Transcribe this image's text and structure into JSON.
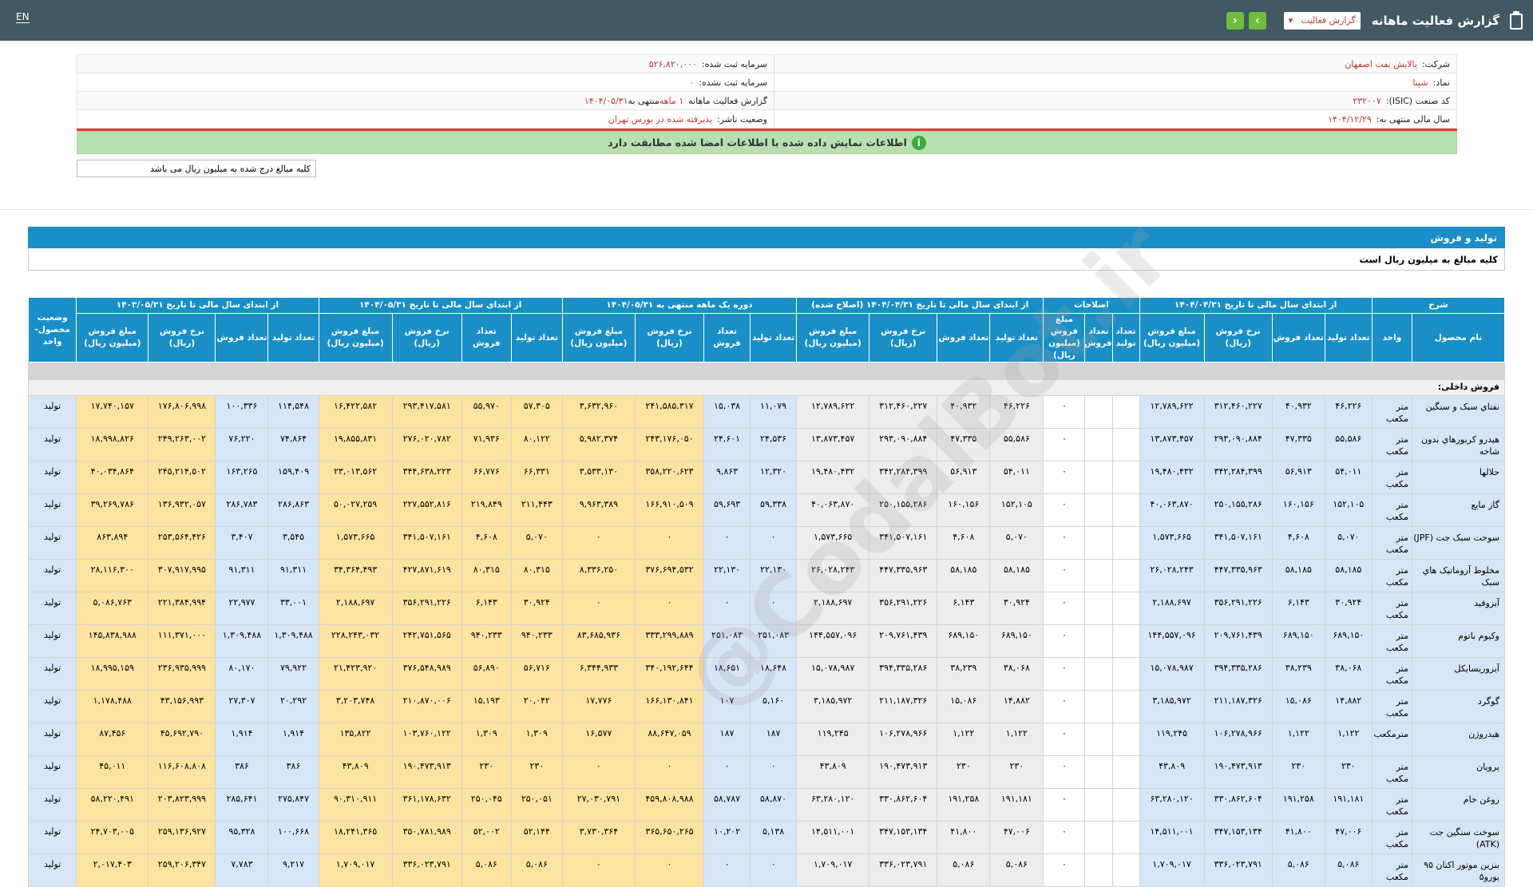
{
  "topbar": {
    "title": "گزارش فعالیت ماهانه",
    "select_value": "گزارش فعالیت",
    "next_label": "›",
    "prev_label": "‹",
    "lang": "EN"
  },
  "info": {
    "company_label": "شرکت:",
    "company": "پالایش نفت اصفهان",
    "symbol_label": "نماد:",
    "symbol": "شپنا",
    "isic_label": "کد صنعت (ISIC):",
    "isic": "۲۳۲۰۰۷",
    "fiscal_label": "سال مالی منتهی به:",
    "fiscal": "۱۴۰۴/۱۲/۲۹",
    "capital_label": "سرمایه ثبت شده:",
    "capital": "۵۲۶,۸۲۰,۰۰۰",
    "unreg_capital_label": "سرمایه ثبت نشده:",
    "unreg_capital": "۰",
    "report_label": "گزارش فعالیت ماهانه",
    "report_value": "۱ ماهه",
    "report_end": "منتهی به",
    "report_date": "۱۴۰۴/۰۵/۳۱",
    "status_label": "وضعیت ناشر:",
    "status": "پذیرفته شده در بورس تهران"
  },
  "banner": "اطلاعات نمایش داده شده با اطلاعات امضا شده مطابقت دارد",
  "note": "کلیه مبالغ درج شده به میلیون ریال می باشد",
  "section": {
    "title": "تولید و فروش",
    "subtitle": "کلیه مبالغ به میلیون ریال است"
  },
  "table": {
    "groups": [
      "شرح",
      "از ابتدای سال مالی تا تاریخ ۱۴۰۴/۰۴/۳۱",
      "اصلاحات",
      "از ابتدای سال مالی تا تاریخ ۱۴۰۴/۰۴/۳۱ (اصلاح شده)",
      "دوره یک ماهه منتهی به ۱۴۰۴/۰۵/۳۱",
      "از ابتدای سال مالی تا تاریخ ۱۴۰۴/۰۵/۳۱",
      "از ابتدای سال مالی تا تاریخ ۱۴۰۳/۰۵/۳۱",
      "وضعیت محصول-واحد"
    ],
    "sub_headers": {
      "name": "نام محصول",
      "unit": "واحد",
      "prod": "تعداد تولید",
      "sales": "تعداد فروش",
      "rate": "نرخ فروش (ریال)",
      "amount": "مبلغ فروش (میلیون ریال)"
    },
    "group_label": "فروش داخلی:",
    "rows": [
      {
        "name": "نفتاي سبک و سنگين",
        "unit": "متر مکعب",
        "v": [
          "۴۶,۲۲۶",
          "۴۰,۹۳۲",
          "۳۱۲,۴۶۰,۲۲۷",
          "۱۲,۷۸۹,۶۲۲",
          "",
          "",
          "۰",
          "۴۶,۲۲۶",
          "۴۰,۹۳۲",
          "۳۱۲,۴۶۰,۲۲۷",
          "۱۲,۷۸۹,۶۲۲",
          "۱۱,۰۷۹",
          "۱۵,۰۳۸",
          "۲۴۱,۵۸۵,۳۱۷",
          "۳,۶۳۲,۹۶۰",
          "۵۷,۳۰۵",
          "۵۵,۹۷۰",
          "۲۹۳,۴۱۷,۵۸۱",
          "۱۶,۴۲۲,۵۸۲",
          "۱۱۴,۵۴۸",
          "۱۰۰,۳۳۶",
          "۱۷۶,۸۰۶,۹۹۸",
          "۱۷,۷۴۰,۱۵۷"
        ],
        "status": "تولید"
      },
      {
        "name": "هيدرو کربورهاي بدون شاخه",
        "unit": "متر مکعب",
        "v": [
          "۵۵,۵۸۶",
          "۴۷,۳۳۵",
          "۲۹۳,۰۹۰,۸۸۴",
          "۱۳,۸۷۳,۴۵۷",
          "",
          "",
          "۰",
          "۵۵,۵۸۶",
          "۴۷,۳۳۵",
          "۲۹۳,۰۹۰,۸۸۴",
          "۱۳,۸۷۳,۴۵۷",
          "۲۴,۵۳۶",
          "۲۴,۶۰۱",
          "۲۴۳,۱۷۶,۰۵۰",
          "۵,۹۸۲,۳۷۴",
          "۸۰,۱۲۲",
          "۷۱,۹۳۶",
          "۲۷۶,۰۲۰,۷۸۲",
          "۱۹,۸۵۵,۸۳۱",
          "۷۴,۸۶۴",
          "۷۶,۲۲۰",
          "۲۴۹,۲۶۳,۰۰۲",
          "۱۸,۹۹۸,۸۲۶"
        ],
        "status": "تولید"
      },
      {
        "name": "حلالها",
        "unit": "متر مکعب",
        "v": [
          "۵۴,۰۱۱",
          "۵۶,۹۱۳",
          "۳۴۲,۲۸۴,۳۹۹",
          "۱۹,۴۸۰,۴۳۲",
          "",
          "",
          "۰",
          "۵۴,۰۱۱",
          "۵۶,۹۱۳",
          "۳۴۲,۲۸۴,۳۹۹",
          "۱۹,۴۸۰,۴۳۲",
          "۱۲,۳۲۰",
          "۹,۸۶۳",
          "۳۵۸,۲۲۰,۶۲۳",
          "۳,۵۳۳,۱۳۰",
          "۶۶,۳۳۱",
          "۶۶,۷۷۶",
          "۳۴۴,۶۳۸,۲۲۳",
          "۲۳,۰۱۳,۵۶۲",
          "۱۵۹,۴۰۹",
          "۱۶۳,۲۶۵",
          "۲۴۵,۲۱۴,۵۰۲",
          "۴۰,۰۳۴,۸۶۴"
        ],
        "status": "تولید"
      },
      {
        "name": "گاز مايع",
        "unit": "متر مکعب",
        "v": [
          "۱۵۲,۱۰۵",
          "۱۶۰,۱۵۶",
          "۲۵۰,۱۵۵,۲۸۶",
          "۴۰,۰۶۳,۸۷۰",
          "",
          "",
          "۰",
          "۱۵۲,۱۰۵",
          "۱۶۰,۱۵۶",
          "۲۵۰,۱۵۵,۲۸۶",
          "۴۰,۰۶۳,۸۷۰",
          "۵۹,۳۳۸",
          "۵۹,۶۹۳",
          "۱۶۶,۹۱۰,۵۰۹",
          "۹,۹۶۳,۳۸۹",
          "۲۱۱,۴۴۳",
          "۲۱۹,۸۴۹",
          "۲۲۷,۵۵۲,۸۱۶",
          "۵۰,۰۲۷,۲۵۹",
          "۲۸۶,۸۶۳",
          "۲۸۶,۷۸۳",
          "۱۳۶,۹۳۲,۰۵۷",
          "۳۹,۲۶۹,۷۸۶"
        ],
        "status": "تولید"
      },
      {
        "name": "سوخت سبک جت (JPF)",
        "unit": "متر مکعب",
        "v": [
          "۵,۰۷۰",
          "۴,۶۰۸",
          "۳۴۱,۵۰۷,۱۶۱",
          "۱,۵۷۳,۶۶۵",
          "",
          "",
          "۰",
          "۵,۰۷۰",
          "۴,۶۰۸",
          "۳۴۱,۵۰۷,۱۶۱",
          "۱,۵۷۳,۶۶۵",
          "۰",
          "۰",
          "۰",
          "۰",
          "۵,۰۷۰",
          "۴,۶۰۸",
          "۳۴۱,۵۰۷,۱۶۱",
          "۱,۵۷۳,۶۶۵",
          "۳,۵۴۵",
          "۳,۴۰۷",
          "۲۵۳,۵۶۴,۴۲۶",
          "۸۶۳,۸۹۴"
        ],
        "status": "تولید"
      },
      {
        "name": "مخلوط آروماتيک هاي سبک",
        "unit": "متر مکعب",
        "v": [
          "۵۸,۱۸۵",
          "۵۸,۱۸۵",
          "۴۴۷,۳۳۵,۹۶۳",
          "۲۶,۰۲۸,۲۴۳",
          "",
          "",
          "۰",
          "۵۸,۱۸۵",
          "۵۸,۱۸۵",
          "۴۴۷,۳۳۵,۹۶۳",
          "۲۶,۰۲۸,۲۴۳",
          "۲۲,۱۳۰",
          "۲۲,۱۳۰",
          "۳۷۶,۶۹۴,۵۳۲",
          "۸,۳۳۶,۲۵۰",
          "۸۰,۳۱۵",
          "۸۰,۳۱۵",
          "۴۲۷,۸۷۱,۶۱۹",
          "۳۴,۳۶۴,۴۹۳",
          "۹۱,۳۱۱",
          "۹۱,۳۱۱",
          "۳۰۷,۹۱۷,۹۹۵",
          "۲۸,۱۱۶,۳۰۰"
        ],
        "status": "تولید"
      },
      {
        "name": "آيزوفيد",
        "unit": "متر مکعب",
        "v": [
          "۳۰,۹۲۴",
          "۶,۱۴۳",
          "۳۵۶,۲۹۱,۲۲۶",
          "۲,۱۸۸,۶۹۷",
          "",
          "",
          "۰",
          "۳۰,۹۲۴",
          "۶,۱۴۳",
          "۳۵۶,۲۹۱,۲۲۶",
          "۲,۱۸۸,۶۹۷",
          "۰",
          "۰",
          "۰",
          "۰",
          "۳۰,۹۲۴",
          "۶,۱۴۳",
          "۳۵۶,۲۹۱,۲۲۶",
          "۲,۱۸۸,۶۹۷",
          "۳۳,۰۰۱",
          "۲۲,۹۷۷",
          "۲۲۱,۳۸۴,۹۹۴",
          "۵,۰۸۶,۷۶۳"
        ],
        "status": "تولید"
      },
      {
        "name": "وکيوم باتوم",
        "unit": "متر مکعب",
        "v": [
          "۶۸۹,۱۵۰",
          "۶۸۹,۱۵۰",
          "۲۰۹,۷۶۱,۴۳۹",
          "۱۴۴,۵۵۷,۰۹۶",
          "",
          "",
          "۰",
          "۶۸۹,۱۵۰",
          "۶۸۹,۱۵۰",
          "۲۰۹,۷۶۱,۴۳۹",
          "۱۴۴,۵۵۷,۰۹۶",
          "۲۵۱,۰۸۳",
          "۲۵۱,۰۸۳",
          "۳۳۳,۲۹۹,۸۸۹",
          "۸۳,۶۸۵,۹۳۶",
          "۹۴۰,۲۳۳",
          "۹۴۰,۲۳۳",
          "۲۴۲,۷۵۱,۵۶۵",
          "۲۲۸,۲۴۳,۰۳۲",
          "۱,۳۰۹,۴۸۸",
          "۱,۳۰۹,۴۸۸",
          "۱۱۱,۳۷۱,۰۰۰",
          "۱۴۵,۸۳۸,۹۸۸"
        ],
        "status": "تولید"
      },
      {
        "name": "آيزوريسايکل",
        "unit": "متر مکعب",
        "v": [
          "۳۸,۰۶۸",
          "۳۸,۲۳۹",
          "۳۹۴,۳۳۵,۲۸۶",
          "۱۵,۰۷۸,۹۸۷",
          "",
          "",
          "۰",
          "۳۸,۰۶۸",
          "۳۸,۲۳۹",
          "۳۹۴,۳۳۵,۲۸۶",
          "۱۵,۰۷۸,۹۸۷",
          "۱۸,۶۴۸",
          "۱۸,۶۵۱",
          "۳۴۰,۱۹۲,۶۴۴",
          "۶,۳۴۴,۹۳۳",
          "۵۶,۷۱۶",
          "۵۶,۸۹۰",
          "۳۷۶,۵۴۸,۹۸۹",
          "۲۱,۴۲۳,۹۲۰",
          "۷۹,۹۲۲",
          "۸۰,۱۷۰",
          "۲۳۶,۹۳۵,۹۹۹",
          "۱۸,۹۹۵,۱۵۹"
        ],
        "status": "تولید"
      },
      {
        "name": "گوگرد",
        "unit": "متر مکعب",
        "v": [
          "۱۴,۸۸۲",
          "۱۵,۰۸۶",
          "۲۱۱,۱۸۷,۳۲۶",
          "۳,۱۸۵,۹۷۲",
          "",
          "",
          "۰",
          "۱۴,۸۸۲",
          "۱۵,۰۸۶",
          "۲۱۱,۱۸۷,۳۲۶",
          "۳,۱۸۵,۹۷۲",
          "۵,۱۶۰",
          "۱۰۷",
          "۱۶۶,۱۳۰,۸۴۱",
          "۱۷,۷۷۶",
          "۲۰,۰۴۲",
          "۱۵,۱۹۳",
          "۲۱۰,۸۷۰,۰۰۶",
          "۳,۲۰۳,۷۴۸",
          "۲۰,۲۹۲",
          "۲۷,۳۰۷",
          "۴۳,۱۵۶,۹۹۳",
          "۱,۱۷۸,۴۸۸"
        ],
        "status": "تولید"
      },
      {
        "name": "هيدروژن",
        "unit": "مترمکعب",
        "v": [
          "۱,۱۲۲",
          "۱,۱۲۲",
          "۱۰۶,۲۷۸,۹۶۶",
          "۱۱۹,۲۴۵",
          "",
          "",
          "۰",
          "۱,۱۲۲",
          "۱,۱۲۲",
          "۱۰۶,۲۷۸,۹۶۶",
          "۱۱۹,۲۴۵",
          "۱۸۷",
          "۱۸۷",
          "۸۸,۶۴۷,۰۵۹",
          "۱۶,۵۷۷",
          "۱,۳۰۹",
          "۱,۳۰۹",
          "۱۰۳,۷۶۰,۱۲۲",
          "۱۳۵,۸۲۲",
          "۱,۹۱۴",
          "۱,۹۱۴",
          "۴۵,۶۹۲,۷۹۰",
          "۸۷,۴۵۶"
        ],
        "status": "تولید"
      },
      {
        "name": "پروپان",
        "unit": "متر مکعب",
        "v": [
          "۲۳۰",
          "۲۳۰",
          "۱۹۰,۴۷۳,۹۱۳",
          "۴۳,۸۰۹",
          "",
          "",
          "۰",
          "۲۳۰",
          "۲۳۰",
          "۱۹۰,۴۷۳,۹۱۳",
          "۴۳,۸۰۹",
          "۰",
          "۰",
          "۰",
          "۰",
          "۲۳۰",
          "۲۳۰",
          "۱۹۰,۴۷۳,۹۱۳",
          "۴۳,۸۰۹",
          "۳۸۶",
          "۳۸۶",
          "۱۱۶,۶۰۸,۸۰۸",
          "۴۵,۰۱۱"
        ],
        "status": "تولید"
      },
      {
        "name": "روغن خام",
        "unit": "متر مکعب",
        "v": [
          "۱۹۱,۱۸۱",
          "۱۹۱,۲۵۸",
          "۳۳۰,۸۶۲,۶۰۴",
          "۶۳,۲۸۰,۱۲۰",
          "",
          "",
          "۰",
          "۱۹۱,۱۸۱",
          "۱۹۱,۲۵۸",
          "۳۳۰,۸۶۲,۶۰۴",
          "۶۳,۲۸۰,۱۲۰",
          "۵۸,۸۷۰",
          "۵۸,۷۸۷",
          "۴۵۹,۸۰۸,۹۸۸",
          "۲۷,۰۳۰,۷۹۱",
          "۲۵۰,۰۵۱",
          "۲۵۰,۰۴۵",
          "۳۶۱,۱۷۸,۶۳۲",
          "۹۰,۳۱۰,۹۱۱",
          "۲۷۵,۸۴۷",
          "۲۸۵,۶۴۱",
          "۲۰۳,۸۲۳,۹۹۹",
          "۵۸,۲۲۰,۴۹۱"
        ],
        "status": "تولید"
      },
      {
        "name": "سوخت سنگين جت (ATK)",
        "unit": "متر مکعب",
        "v": [
          "۴۷,۰۰۶",
          "۴۱,۸۰۰",
          "۳۴۷,۱۵۳,۱۳۴",
          "۱۴,۵۱۱,۰۰۱",
          "",
          "",
          "۰",
          "۴۷,۰۰۶",
          "۴۱,۸۰۰",
          "۳۴۷,۱۵۳,۱۳۴",
          "۱۴,۵۱۱,۰۰۱",
          "۵,۱۳۸",
          "۱۰,۲۰۲",
          "۳۶۵,۶۵۰,۲۶۵",
          "۳,۷۳۰,۳۶۴",
          "۵۲,۱۴۴",
          "۵۲,۰۰۲",
          "۳۵۰,۷۸۱,۹۸۹",
          "۱۸,۲۴۱,۳۶۵",
          "۱۰۰,۶۶۸",
          "۹۵,۳۲۸",
          "۲۵۹,۱۳۶,۹۲۷",
          "۲۴,۷۰۳,۰۰۵"
        ],
        "status": "تولید"
      },
      {
        "name": "بنزين موتور اکتان ۹۵ يورو۵",
        "unit": "متر مکعب",
        "v": [
          "۵,۰۸۶",
          "۵,۰۸۶",
          "۳۳۶,۰۲۳,۷۹۱",
          "۱,۷۰۹,۰۱۷",
          "",
          "",
          "۰",
          "۵,۰۸۶",
          "۵,۰۸۶",
          "۳۳۶,۰۲۳,۷۹۱",
          "۱,۷۰۹,۰۱۷",
          "۰",
          "۰",
          "۰",
          "۰",
          "۵,۰۸۶",
          "۵,۰۸۶",
          "۳۳۶,۰۲۳,۷۹۱",
          "۱,۷۰۹,۰۱۷",
          "۹,۲۱۷",
          "۷,۷۸۳",
          "۲۵۹,۲۰۶,۳۴۷",
          "۲,۰۱۷,۴۰۳"
        ],
        "status": "تولید"
      }
    ]
  },
  "watermark": "@CodalBot.ir",
  "colors": {
    "topbar": "#425863",
    "header": "#1a8fc7",
    "blue_cell": "#d6e6f6",
    "yellow_cell": "#fde3a0",
    "green_banner": "#b7dfb0"
  }
}
